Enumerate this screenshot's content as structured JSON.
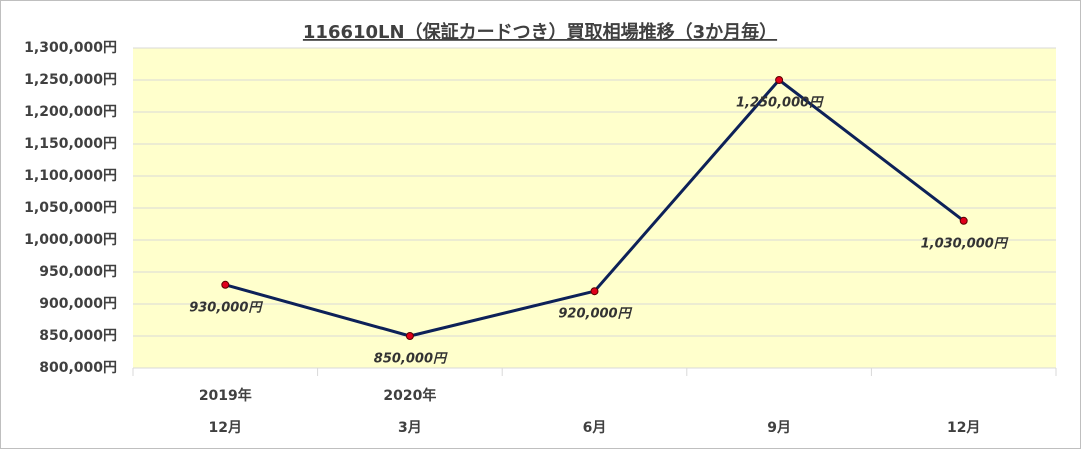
{
  "chart_data": {
    "type": "line",
    "title": "116610LN（保証カードつき）買取相場推移（3か月毎）",
    "category_years": [
      "2019年",
      "2020年",
      null,
      null,
      null
    ],
    "categories": [
      "12月",
      "3月",
      "6月",
      "9月",
      "12月"
    ],
    "series": [
      {
        "color": "#0d2158",
        "marker_color": "#e0001b",
        "values": [
          930000,
          850000,
          920000,
          1250000,
          1030000
        ],
        "value_labels": [
          "930,000円",
          "850,000円",
          "920,000円",
          "1,250,000円",
          "1,030,000円"
        ]
      }
    ],
    "ylim": [
      800000,
      1300000
    ],
    "yticks": [
      {
        "value": 800000,
        "label": "800,000円"
      },
      {
        "value": 850000,
        "label": "850,000円"
      },
      {
        "value": 900000,
        "label": "900,000円"
      },
      {
        "value": 950000,
        "label": "950,000円"
      },
      {
        "value": 1000000,
        "label": "1,000,000円"
      },
      {
        "value": 1050000,
        "label": "1,050,000円"
      },
      {
        "value": 1100000,
        "label": "1,100,000円"
      },
      {
        "value": 1150000,
        "label": "1,150,000円"
      },
      {
        "value": 1200000,
        "label": "1,200,000円"
      },
      {
        "value": 1250000,
        "label": "1,250,000円"
      },
      {
        "value": 1300000,
        "label": "1,300,000円"
      }
    ],
    "grid": true,
    "plot_background": "#ffffcc"
  }
}
